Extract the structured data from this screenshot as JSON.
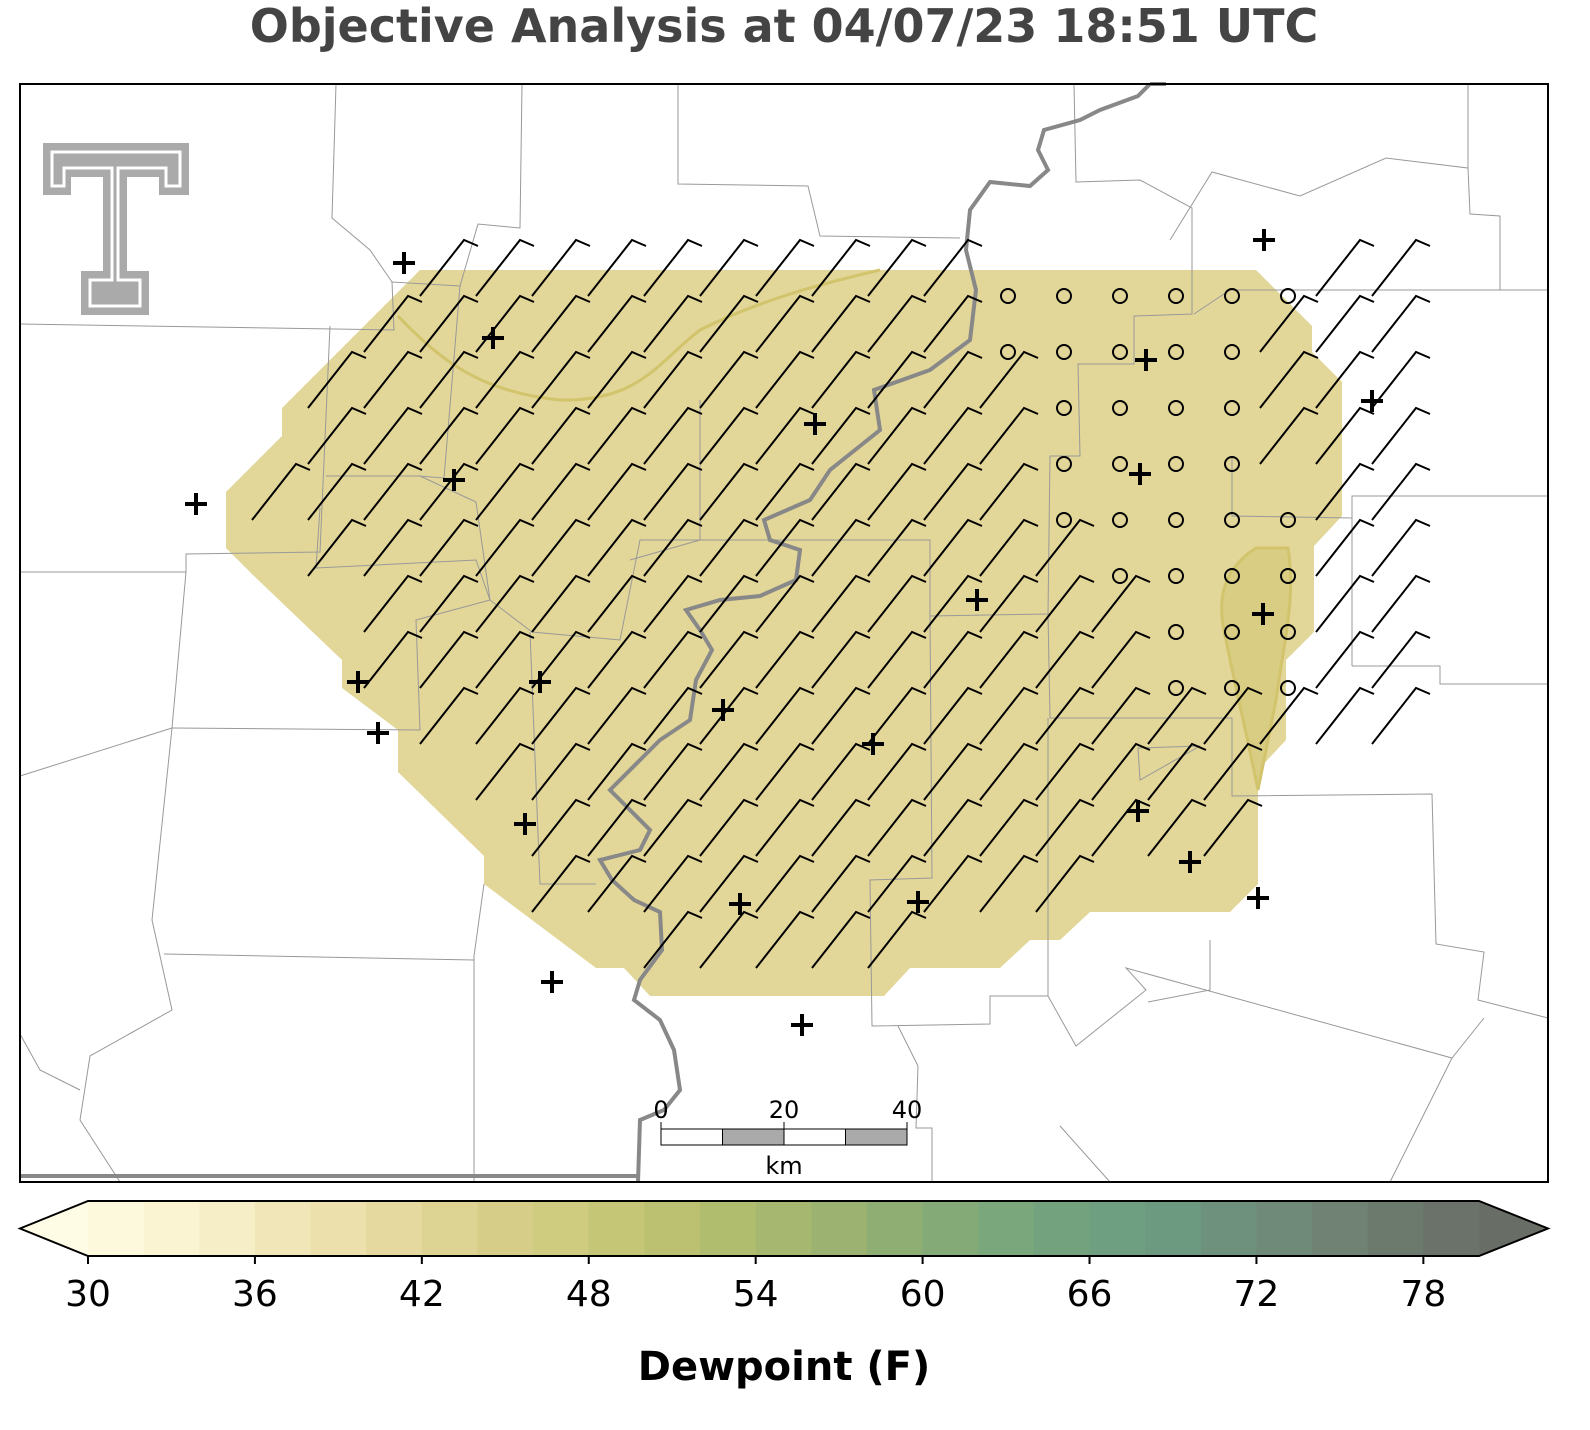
{
  "title": "Objective Analysis at 04/07/23 18:51 UTC",
  "colorbar": {
    "label": "Dewpoint (F)",
    "lim": [
      30,
      80
    ],
    "ticks": [
      30,
      36,
      42,
      48,
      54,
      60,
      66,
      72,
      78
    ],
    "colors": [
      "#fdf9dd",
      "#faf4d2",
      "#f6eec6",
      "#f1e6b8",
      "#ece0ac",
      "#e5d99f",
      "#ddd393",
      "#d6ce88",
      "#cfcb7f",
      "#c6c677",
      "#bcc172",
      "#b1bd6e",
      "#a6b86f",
      "#9bb271",
      "#8fae74",
      "#84aa77",
      "#7aa77b",
      "#72a37e",
      "#6d9f80",
      "#6b9a80",
      "#6e917d",
      "#6f8a79",
      "#6f8274",
      "#6c7a6e",
      "#6a726a"
    ],
    "under_color": "#fffce6",
    "over_color": "#686d65"
  },
  "scale_bar": {
    "ticks": [
      0,
      20,
      40
    ],
    "unit": "km"
  }
}
